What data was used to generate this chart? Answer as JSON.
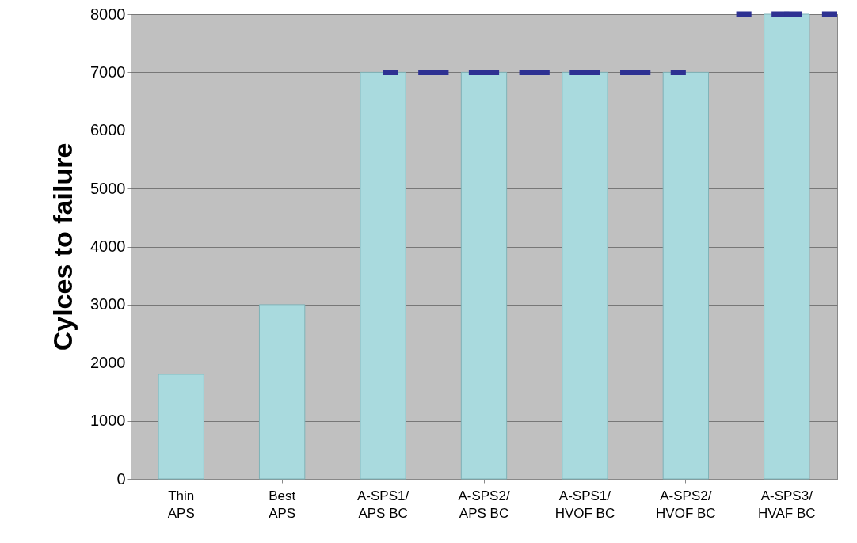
{
  "chart_data": {
    "type": "bar",
    "ylabel": "Cylces to failure",
    "categories": [
      "Thin\nAPS",
      "Best\nAPS",
      "A-SPS1/\nAPS BC",
      "A-SPS2/\nAPS BC",
      "A-SPS1/\nHVOF BC",
      "A-SPS2/\nHVOF BC",
      "A-SPS3/\nHVAF BC"
    ],
    "series": [
      {
        "color": "#a9dade",
        "values": [
          1800,
          3000,
          7000,
          7000,
          7000,
          7000,
          8000
        ]
      },
      {
        "type": "line",
        "color": "#2e3192",
        "line_style": "dashed",
        "values": [
          null,
          null,
          7000,
          7000,
          7000,
          7000,
          null
        ]
      },
      {
        "type": "line",
        "color": "#2e3192",
        "line_style": "dashed",
        "marker": "square",
        "values": [
          null,
          null,
          null,
          null,
          null,
          null,
          8000
        ]
      }
    ],
    "ylim": [
      0,
      8000
    ],
    "yticks": [
      0,
      1000,
      2000,
      3000,
      4000,
      5000,
      6000,
      7000,
      8000
    ],
    "grid": "y"
  }
}
